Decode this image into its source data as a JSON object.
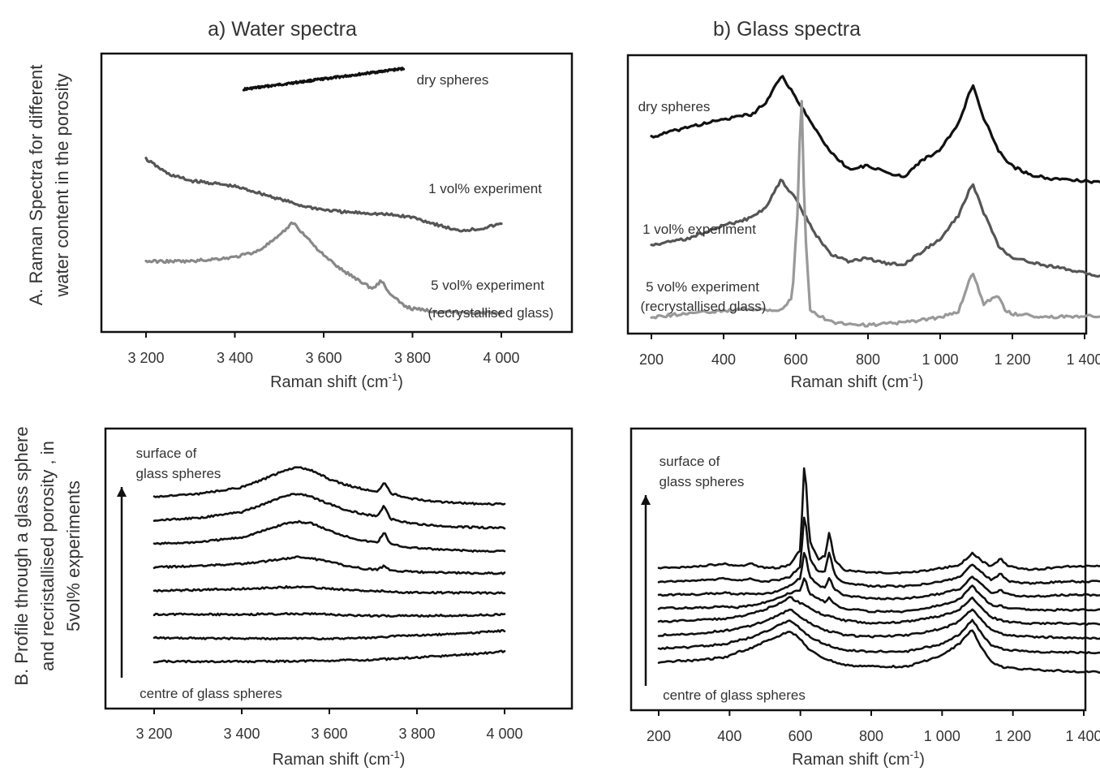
{
  "figure": {
    "column_titles": [
      "a) Water spectra",
      "b) Glass spectra"
    ],
    "row_labels": {
      "A": [
        "A. Raman Spectra for different",
        "water content in the porosity"
      ],
      "B": [
        "B. Profile through a glass sphere",
        "and recristallised porosity , in",
        "5vol% experiments"
      ]
    }
  },
  "chart_data": [
    {
      "id": "A-water",
      "type": "line",
      "xlabel": "Raman shift (cm-1)",
      "ylabel": "",
      "xlim": [
        3100,
        4150
      ],
      "xticks": [
        3200,
        3400,
        3600,
        3800,
        4000
      ],
      "xtick_labels": [
        "3 200",
        "3 400",
        "3 600",
        "3 800",
        "4 000"
      ],
      "yticks": false,
      "series": [
        {
          "name": "dry spheres",
          "color": "#111111",
          "x": [
            3420,
            3780
          ],
          "y": [
            1.02,
            1.27
          ]
        },
        {
          "name": "1 vol% experiment",
          "color": "#555555",
          "x": [
            3200,
            3250,
            3300,
            3350,
            3400,
            3450,
            3500,
            3550,
            3600,
            3650,
            3700,
            3750,
            3800,
            3850,
            3900,
            3950,
            4000
          ],
          "y": [
            0.18,
            0.0,
            -0.08,
            -0.11,
            -0.15,
            -0.22,
            -0.3,
            -0.38,
            -0.43,
            -0.46,
            -0.47,
            -0.49,
            -0.52,
            -0.6,
            -0.68,
            -0.66,
            -0.6
          ]
        },
        {
          "name": "5 vol% experiment (recrystallised glass)",
          "color": "#888888",
          "x": [
            3200,
            3300,
            3400,
            3450,
            3500,
            3530,
            3560,
            3600,
            3640,
            3680,
            3710,
            3730,
            3750,
            3780,
            3800,
            3850,
            3900,
            3950,
            4000
          ],
          "y": [
            -1.05,
            -1.05,
            -1.0,
            -0.93,
            -0.75,
            -0.58,
            -0.75,
            -0.98,
            -1.15,
            -1.28,
            -1.38,
            -1.28,
            -1.45,
            -1.58,
            -1.62,
            -1.65,
            -1.66,
            -1.67,
            -1.67
          ]
        }
      ],
      "annotations": [
        "dry spheres",
        "1 vol% experiment",
        "5 vol% experiment",
        "(recrystallised glass)"
      ]
    },
    {
      "id": "A-glass",
      "type": "line",
      "xlabel": "Raman shift (cm-1)",
      "ylabel": "",
      "xlim": [
        150,
        1520
      ],
      "xticks": [
        200,
        400,
        600,
        800,
        1000,
        1200,
        1400
      ],
      "xtick_labels": [
        "200",
        "400",
        "600",
        "800",
        "1 000",
        "1 200",
        "1 400"
      ],
      "yticks": false,
      "series": [
        {
          "name": "dry spheres",
          "color": "#111111",
          "x": [
            200,
            300,
            400,
            480,
            520,
            560,
            600,
            650,
            700,
            750,
            800,
            850,
            900,
            950,
            1000,
            1050,
            1090,
            1120,
            1160,
            1200,
            1250,
            1300,
            1400,
            1490
          ],
          "y": [
            2.75,
            2.9,
            3.02,
            3.1,
            3.3,
            3.7,
            3.35,
            2.9,
            2.5,
            2.25,
            2.32,
            2.2,
            2.15,
            2.4,
            2.55,
            2.95,
            3.55,
            3.05,
            2.55,
            2.3,
            2.18,
            2.12,
            2.08,
            2.05
          ]
        },
        {
          "name": "1 vol% experiment",
          "color": "#555555",
          "x": [
            200,
            300,
            400,
            480,
            520,
            560,
            600,
            650,
            700,
            750,
            800,
            850,
            900,
            950,
            1000,
            1050,
            1090,
            1120,
            1160,
            1200,
            1250,
            1300,
            1400,
            1490
          ],
          "y": [
            1.1,
            1.2,
            1.4,
            1.52,
            1.7,
            2.1,
            1.8,
            1.3,
            0.95,
            0.85,
            0.9,
            0.82,
            0.8,
            1.0,
            1.2,
            1.55,
            2.05,
            1.6,
            1.1,
            0.9,
            0.85,
            0.78,
            0.68,
            0.55
          ]
        },
        {
          "name": "5 vol% experiment (recrystallised glass)",
          "color": "#999999",
          "x": [
            200,
            300,
            400,
            480,
            560,
            590,
            605,
            615,
            625,
            640,
            700,
            800,
            900,
            1000,
            1050,
            1090,
            1120,
            1160,
            1180,
            1200,
            1300,
            1400,
            1490
          ],
          "y": [
            0.0,
            0.06,
            0.1,
            0.12,
            0.1,
            0.3,
            1.6,
            3.6,
            1.4,
            0.1,
            -0.08,
            -0.12,
            -0.08,
            0.0,
            0.08,
            0.7,
            0.2,
            0.35,
            0.1,
            0.05,
            0.0,
            0.02,
            0.02
          ]
        }
      ],
      "annotations": [
        "dry spheres",
        "1 vol% experiment",
        "5 vol% experiment",
        "(recrystallised glass)"
      ]
    },
    {
      "id": "B-water",
      "type": "line",
      "xlabel": "Raman shift (cm-1)",
      "ylabel": "",
      "xlim": [
        3150,
        4150
      ],
      "xticks": [
        3200,
        3400,
        3600,
        3800,
        4000
      ],
      "xtick_labels": [
        "3 200",
        "3 400",
        "3 600",
        "3 800",
        "4 000"
      ],
      "yticks": false,
      "annotations": [
        "surface of",
        "glass spheres",
        "centre of glass spheres"
      ],
      "x": [
        3200,
        3300,
        3400,
        3450,
        3500,
        3530,
        3560,
        3600,
        3640,
        3680,
        3710,
        3725,
        3740,
        3780,
        3850,
        3950,
        4000
      ],
      "series": [
        {
          "name": "1",
          "y": [
            0,
            0.1,
            0.32,
            0.6,
            0.92,
            1.0,
            0.9,
            0.6,
            0.4,
            0.25,
            0.15,
            0.5,
            0.12,
            -0.05,
            -0.18,
            -0.25,
            -0.25
          ]
        },
        {
          "name": "2",
          "y": [
            0,
            0.08,
            0.28,
            0.55,
            0.85,
            0.9,
            0.8,
            0.55,
            0.35,
            0.2,
            0.15,
            0.5,
            0.05,
            -0.1,
            -0.2,
            -0.25,
            -0.25
          ]
        },
        {
          "name": "3",
          "y": [
            0,
            0.06,
            0.22,
            0.45,
            0.7,
            0.75,
            0.7,
            0.45,
            0.25,
            0.1,
            0.05,
            0.4,
            -0.02,
            -0.12,
            -0.2,
            -0.25,
            -0.25
          ]
        },
        {
          "name": "4",
          "y": [
            0,
            0.05,
            0.12,
            0.2,
            0.3,
            0.35,
            0.3,
            0.2,
            0.05,
            -0.05,
            -0.08,
            0.05,
            -0.1,
            -0.15,
            -0.18,
            -0.2,
            -0.2
          ]
        },
        {
          "name": "5",
          "y": [
            0,
            0.03,
            0.07,
            0.1,
            0.13,
            0.14,
            0.12,
            0.08,
            0.04,
            0.0,
            -0.02,
            0.0,
            -0.03,
            -0.05,
            -0.06,
            -0.07,
            -0.07
          ]
        },
        {
          "name": "6",
          "y": [
            0,
            0.0,
            0.0,
            0.01,
            0.02,
            0.03,
            0.02,
            0.0,
            -0.02,
            -0.04,
            -0.05,
            -0.05,
            -0.05,
            -0.05,
            -0.04,
            -0.02,
            0.0
          ]
        },
        {
          "name": "7",
          "y": [
            0,
            -0.01,
            -0.02,
            -0.02,
            -0.02,
            -0.02,
            -0.02,
            -0.02,
            -0.01,
            0.0,
            0.02,
            0.03,
            0.05,
            0.08,
            0.12,
            0.2,
            0.25
          ]
        },
        {
          "name": "8",
          "y": [
            0,
            0.0,
            0.0,
            0.0,
            0.01,
            0.02,
            0.02,
            0.03,
            0.04,
            0.05,
            0.07,
            0.08,
            0.09,
            0.12,
            0.18,
            0.28,
            0.35
          ]
        }
      ]
    },
    {
      "id": "B-glass",
      "type": "line",
      "xlabel": "Raman shift (cm-1)",
      "ylabel": "",
      "xlim": [
        150,
        1510
      ],
      "xticks": [
        200,
        400,
        600,
        800,
        1000,
        1200,
        1400
      ],
      "xtick_labels": [
        "200",
        "400",
        "600",
        "800",
        "1 000",
        "1 200",
        "1 400"
      ],
      "yticks": false,
      "annotations": [
        "surface of",
        "glass spheres",
        "centre of glass spheres"
      ],
      "x": [
        200,
        300,
        390,
        420,
        460,
        500,
        540,
        570,
        600,
        612,
        625,
        650,
        670,
        682,
        695,
        720,
        800,
        900,
        1000,
        1050,
        1085,
        1110,
        1140,
        1165,
        1190,
        1250,
        1350,
        1490
      ],
      "series": [
        {
          "name": "1",
          "y": [
            0.0,
            0.05,
            0.15,
            0.05,
            0.15,
            0.0,
            0.02,
            0.1,
            0.6,
            3.6,
            0.9,
            0.3,
            0.4,
            1.2,
            0.3,
            -0.05,
            -0.15,
            -0.15,
            0.0,
            0.1,
            0.5,
            0.25,
            0.05,
            0.3,
            0.05,
            -0.05,
            0.05,
            0.1
          ]
        },
        {
          "name": "2",
          "y": [
            0.0,
            0.03,
            0.1,
            0.03,
            0.08,
            0.0,
            0.05,
            0.15,
            0.5,
            2.3,
            0.8,
            0.3,
            0.35,
            1.0,
            0.25,
            -0.05,
            -0.15,
            -0.15,
            0.0,
            0.15,
            0.55,
            0.3,
            0.05,
            0.25,
            0.0,
            -0.05,
            0.0,
            0.0
          ]
        },
        {
          "name": "3",
          "y": [
            0.0,
            0.02,
            0.07,
            0.02,
            0.05,
            0.02,
            0.15,
            0.3,
            0.55,
            1.5,
            0.6,
            0.3,
            0.25,
            0.6,
            0.2,
            0.0,
            -0.12,
            -0.12,
            0.05,
            0.2,
            0.6,
            0.35,
            0.05,
            0.15,
            0.0,
            -0.05,
            0.0,
            0.0
          ]
        },
        {
          "name": "4",
          "y": [
            0.0,
            0.02,
            0.05,
            0.03,
            0.1,
            0.2,
            0.35,
            0.5,
            0.6,
            1.0,
            0.5,
            0.3,
            0.2,
            0.35,
            0.15,
            0.0,
            -0.1,
            -0.1,
            0.1,
            0.3,
            0.75,
            0.4,
            0.1,
            0.08,
            0.0,
            -0.05,
            -0.05,
            -0.05
          ]
        },
        {
          "name": "5",
          "y": [
            0.0,
            0.05,
            0.1,
            0.15,
            0.25,
            0.4,
            0.6,
            0.8,
            0.6,
            0.55,
            0.45,
            0.3,
            0.2,
            0.2,
            0.15,
            0.05,
            -0.05,
            0.0,
            0.2,
            0.4,
            0.8,
            0.45,
            0.15,
            0.05,
            0.0,
            -0.05,
            -0.05,
            -0.1
          ]
        },
        {
          "name": "6",
          "y": [
            0.0,
            0.05,
            0.15,
            0.2,
            0.3,
            0.45,
            0.65,
            0.85,
            0.6,
            0.5,
            0.4,
            0.25,
            0.15,
            0.12,
            0.1,
            0.0,
            -0.05,
            0.0,
            0.2,
            0.45,
            0.85,
            0.5,
            0.15,
            0.05,
            0.0,
            -0.05,
            -0.08,
            -0.1
          ]
        },
        {
          "name": "7",
          "y": [
            0.0,
            0.05,
            0.15,
            0.25,
            0.35,
            0.55,
            0.75,
            0.9,
            0.65,
            0.5,
            0.4,
            0.25,
            0.15,
            0.1,
            0.05,
            -0.05,
            -0.1,
            -0.1,
            0.15,
            0.45,
            0.95,
            0.5,
            0.1,
            0.0,
            -0.05,
            -0.1,
            -0.12,
            -0.15
          ]
        },
        {
          "name": "8",
          "y": [
            0.0,
            0.05,
            0.15,
            0.3,
            0.45,
            0.65,
            0.85,
            1.0,
            0.75,
            0.55,
            0.4,
            0.2,
            0.1,
            0.05,
            0.0,
            -0.1,
            -0.15,
            -0.15,
            0.2,
            0.6,
            1.05,
            0.5,
            0.0,
            -0.15,
            -0.2,
            -0.25,
            -0.3,
            -0.35
          ]
        }
      ]
    }
  ]
}
